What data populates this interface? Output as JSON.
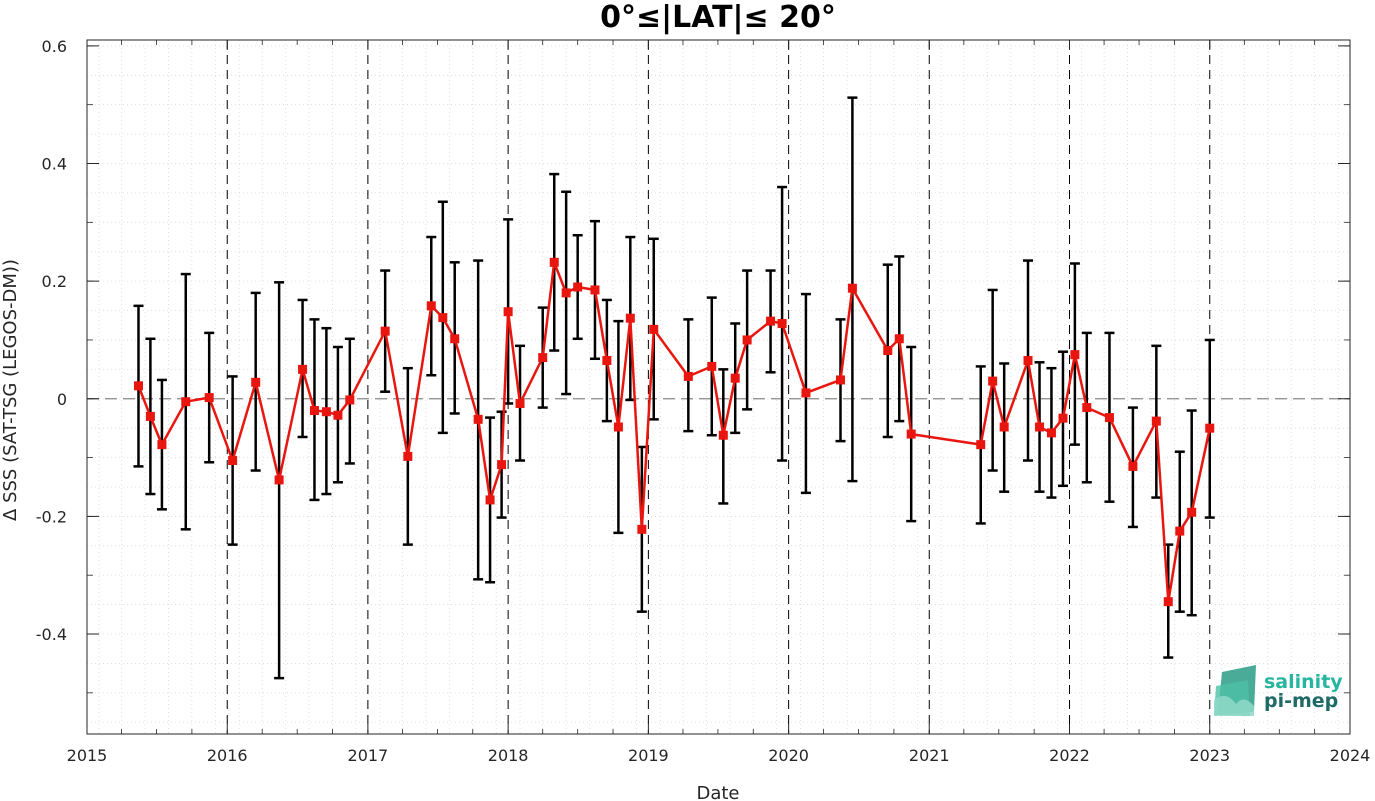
{
  "chart_data": {
    "type": "line",
    "title": "0°≤|LAT|≤ 20°",
    "xlabel": "Date",
    "ylabel": "Δ SSS (SAT-TSG (LEGOS-DM))",
    "xlim": [
      "2015-01-01",
      "2024-01-01"
    ],
    "ylim": [
      -0.57,
      0.61
    ],
    "x_ticks": [
      "2015",
      "2016",
      "2017",
      "2018",
      "2019",
      "2020",
      "2021",
      "2022",
      "2023",
      "2024"
    ],
    "y_ticks": [
      {
        "value": -0.4,
        "label": "-0.4"
      },
      {
        "value": -0.2,
        "label": "-0.2"
      },
      {
        "value": 0,
        "label": "0"
      },
      {
        "value": 0.2,
        "label": "0.2"
      },
      {
        "value": 0.4,
        "label": "0.4"
      },
      {
        "value": 0.6,
        "label": "0.6"
      }
    ],
    "grid": true,
    "zero_line": true,
    "year_separators": true,
    "colors": {
      "series": "#e8160f",
      "error_bars": "#000000",
      "zero_line": "#888888",
      "grid": "#d9d9d9"
    },
    "series": [
      {
        "marker": "square",
        "points": [
          {
            "x": "2015-05-15",
            "y": 0.022,
            "lo": -0.115,
            "hi": 0.158
          },
          {
            "x": "2015-06-15",
            "y": -0.03,
            "lo": -0.162,
            "hi": 0.102
          },
          {
            "x": "2015-07-15",
            "y": -0.078,
            "lo": -0.188,
            "hi": 0.032
          },
          {
            "x": "2015-09-15",
            "y": -0.005,
            "lo": -0.222,
            "hi": 0.212
          },
          {
            "x": "2015-11-15",
            "y": 0.002,
            "lo": -0.108,
            "hi": 0.112
          },
          {
            "x": "2016-01-15",
            "y": -0.105,
            "lo": -0.248,
            "hi": 0.038
          },
          {
            "x": "2016-03-15",
            "y": 0.028,
            "lo": -0.122,
            "hi": 0.18
          },
          {
            "x": "2016-05-15",
            "y": -0.138,
            "lo": -0.475,
            "hi": 0.198
          },
          {
            "x": "2016-07-15",
            "y": 0.05,
            "lo": -0.065,
            "hi": 0.168
          },
          {
            "x": "2016-08-15",
            "y": -0.02,
            "lo": -0.172,
            "hi": 0.135
          },
          {
            "x": "2016-09-15",
            "y": -0.022,
            "lo": -0.162,
            "hi": 0.12
          },
          {
            "x": "2016-10-15",
            "y": -0.028,
            "lo": -0.142,
            "hi": 0.088
          },
          {
            "x": "2016-11-15",
            "y": -0.002,
            "lo": -0.11,
            "hi": 0.102
          },
          {
            "x": "2017-02-15",
            "y": 0.115,
            "lo": 0.012,
            "hi": 0.218
          },
          {
            "x": "2017-04-15",
            "y": -0.098,
            "lo": -0.248,
            "hi": 0.052
          },
          {
            "x": "2017-06-15",
            "y": 0.158,
            "lo": 0.04,
            "hi": 0.275
          },
          {
            "x": "2017-07-15",
            "y": 0.138,
            "lo": -0.058,
            "hi": 0.335
          },
          {
            "x": "2017-08-15",
            "y": 0.102,
            "lo": -0.025,
            "hi": 0.232
          },
          {
            "x": "2017-10-15",
            "y": -0.035,
            "lo": -0.307,
            "hi": 0.235
          },
          {
            "x": "2017-11-15",
            "y": -0.172,
            "lo": -0.312,
            "hi": -0.032
          },
          {
            "x": "2017-12-15",
            "y": -0.112,
            "lo": -0.202,
            "hi": -0.022
          },
          {
            "x": "2018-01-01",
            "y": 0.148,
            "lo": -0.008,
            "hi": 0.305
          },
          {
            "x": "2018-02-01",
            "y": -0.008,
            "lo": -0.105,
            "hi": 0.09
          },
          {
            "x": "2018-04-01",
            "y": 0.07,
            "lo": -0.015,
            "hi": 0.155
          },
          {
            "x": "2018-05-01",
            "y": 0.232,
            "lo": 0.082,
            "hi": 0.382
          },
          {
            "x": "2018-06-01",
            "y": 0.18,
            "lo": 0.008,
            "hi": 0.352
          },
          {
            "x": "2018-07-01",
            "y": 0.19,
            "lo": 0.102,
            "hi": 0.278
          },
          {
            "x": "2018-08-15",
            "y": 0.185,
            "lo": 0.068,
            "hi": 0.302
          },
          {
            "x": "2018-09-15",
            "y": 0.065,
            "lo": -0.038,
            "hi": 0.168
          },
          {
            "x": "2018-10-15",
            "y": -0.048,
            "lo": -0.228,
            "hi": 0.132
          },
          {
            "x": "2018-11-15",
            "y": 0.137,
            "lo": -0.002,
            "hi": 0.275
          },
          {
            "x": "2018-12-15",
            "y": -0.222,
            "lo": -0.362,
            "hi": -0.082
          },
          {
            "x": "2019-01-15",
            "y": 0.118,
            "lo": -0.035,
            "hi": 0.272
          },
          {
            "x": "2019-04-15",
            "y": 0.038,
            "lo": -0.055,
            "hi": 0.135
          },
          {
            "x": "2019-06-15",
            "y": 0.055,
            "lo": -0.062,
            "hi": 0.172
          },
          {
            "x": "2019-07-15",
            "y": -0.062,
            "lo": -0.178,
            "hi": 0.05
          },
          {
            "x": "2019-08-15",
            "y": 0.035,
            "lo": -0.058,
            "hi": 0.128
          },
          {
            "x": "2019-09-15",
            "y": 0.1,
            "lo": -0.018,
            "hi": 0.218
          },
          {
            "x": "2019-11-15",
            "y": 0.132,
            "lo": 0.045,
            "hi": 0.218
          },
          {
            "x": "2019-12-15",
            "y": 0.128,
            "lo": -0.105,
            "hi": 0.36
          },
          {
            "x": "2020-02-15",
            "y": 0.01,
            "lo": -0.16,
            "hi": 0.178
          },
          {
            "x": "2020-05-15",
            "y": 0.032,
            "lo": -0.072,
            "hi": 0.135
          },
          {
            "x": "2020-06-15",
            "y": 0.188,
            "lo": -0.14,
            "hi": 0.512
          },
          {
            "x": "2020-09-15",
            "y": 0.082,
            "lo": -0.065,
            "hi": 0.228
          },
          {
            "x": "2020-10-15",
            "y": 0.102,
            "lo": -0.038,
            "hi": 0.242
          },
          {
            "x": "2020-11-15",
            "y": -0.06,
            "lo": -0.208,
            "hi": 0.088
          },
          {
            "x": "2021-05-15",
            "y": -0.078,
            "lo": -0.212,
            "hi": 0.055
          },
          {
            "x": "2021-06-15",
            "y": 0.03,
            "lo": -0.122,
            "hi": 0.185
          },
          {
            "x": "2021-07-15",
            "y": -0.048,
            "lo": -0.158,
            "hi": 0.06
          },
          {
            "x": "2021-09-15",
            "y": 0.065,
            "lo": -0.105,
            "hi": 0.235
          },
          {
            "x": "2021-10-15",
            "y": -0.048,
            "lo": -0.158,
            "hi": 0.062
          },
          {
            "x": "2021-11-15",
            "y": -0.058,
            "lo": -0.168,
            "hi": 0.052
          },
          {
            "x": "2021-12-15",
            "y": -0.033,
            "lo": -0.148,
            "hi": 0.08
          },
          {
            "x": "2022-01-15",
            "y": 0.075,
            "lo": -0.078,
            "hi": 0.23
          },
          {
            "x": "2022-02-15",
            "y": -0.015,
            "lo": -0.142,
            "hi": 0.112
          },
          {
            "x": "2022-04-15",
            "y": -0.032,
            "lo": -0.175,
            "hi": 0.112
          },
          {
            "x": "2022-06-15",
            "y": -0.115,
            "lo": -0.218,
            "hi": -0.015
          },
          {
            "x": "2022-08-15",
            "y": -0.038,
            "lo": -0.168,
            "hi": 0.09
          },
          {
            "x": "2022-09-15",
            "y": -0.345,
            "lo": -0.44,
            "hi": -0.248
          },
          {
            "x": "2022-10-15",
            "y": -0.225,
            "lo": -0.362,
            "hi": -0.09
          },
          {
            "x": "2022-11-15",
            "y": -0.193,
            "lo": -0.368,
            "hi": -0.02
          },
          {
            "x": "2023-01-01",
            "y": -0.05,
            "lo": -0.202,
            "hi": 0.1
          }
        ]
      }
    ]
  },
  "logo": {
    "line1": "salinity",
    "line2": "pi-mep",
    "color1": "#27b5a0",
    "color2": "#1f6a67",
    "icon": "salinity-waves-icon"
  }
}
